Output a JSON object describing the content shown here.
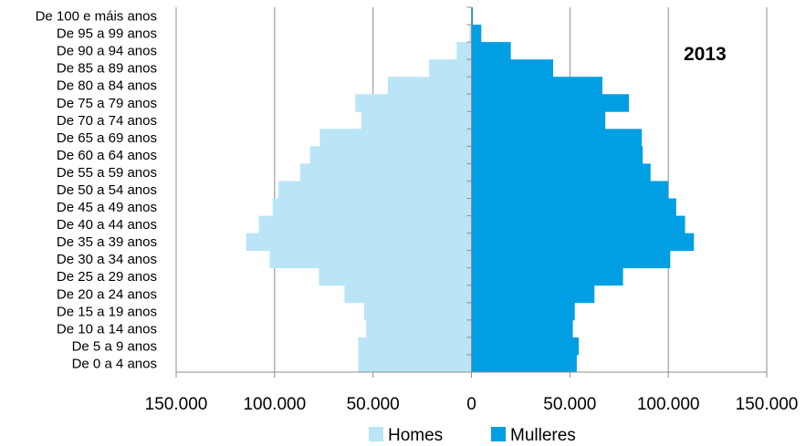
{
  "chart_data": {
    "type": "bar",
    "orientation": "horizontal",
    "layout": "population-pyramid",
    "annotation": "2013",
    "categories": [
      "De 0 a 4 anos",
      "De 5 a 9 anos",
      "De 10 a 14 anos",
      "De 15 a 19 anos",
      "De 20 a 24 anos",
      "De 25 a 29 anos",
      "De 30 a 34 anos",
      "De 35 a 39 anos",
      "De 40 a 44 anos",
      "De 45 a 49 anos",
      "De 50 a 54 anos",
      "De 55 a 59 anos",
      "De 60 a 64 anos",
      "De 65 a 69 anos",
      "De 70 a 74 anos",
      "De 75 a 79 anos",
      "De 80 a 84 anos",
      "De 85 a 89 anos",
      "De 90 a 94 anos",
      "De 95 a 99 anos",
      "De 100 e máis anos"
    ],
    "series": [
      {
        "name": "Homes",
        "color": "#b9e5f7",
        "side": "left",
        "values": [
          57500,
          57500,
          53500,
          54500,
          64500,
          77500,
          102500,
          114500,
          108000,
          101000,
          98000,
          87000,
          82000,
          77000,
          56000,
          59000,
          42500,
          21500,
          7500,
          1000,
          200
        ]
      },
      {
        "name": "Mulleres",
        "color": "#009fe3",
        "side": "right",
        "values": [
          53500,
          54500,
          51500,
          52500,
          62500,
          77000,
          101000,
          113000,
          108500,
          104000,
          100000,
          91000,
          87000,
          86500,
          68000,
          80000,
          66500,
          41500,
          20000,
          5000,
          700
        ]
      }
    ],
    "xlim": [
      -150000,
      150000
    ],
    "xticks": [
      -150000,
      -100000,
      -50000,
      0,
      50000,
      100000,
      150000
    ],
    "xtick_labels": [
      "150.000",
      "100.000",
      "50.000",
      "0",
      "50.000",
      "100.000",
      "150.000"
    ],
    "grid": "vertical",
    "legend": {
      "position": "bottom",
      "items": [
        "Homes",
        "Mulleres"
      ]
    }
  }
}
